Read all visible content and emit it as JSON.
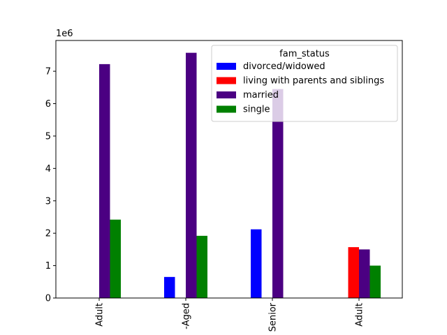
{
  "chart_data": {
    "type": "bar",
    "title": "",
    "xlabel": "",
    "ylabel": "",
    "y_offset_label": "1e6",
    "ylim": [
      0,
      7.95
    ],
    "y_ticks": [
      0,
      1,
      2,
      3,
      4,
      5,
      6,
      7
    ],
    "grid": false,
    "categories": [
      "Adult",
      "-Aged",
      "Senior",
      "Adult"
    ],
    "legend": {
      "title": "fam_status",
      "placement": "top-right"
    },
    "series": [
      {
        "name": "divorced/widowed",
        "color": "#0000ff",
        "values": [
          0,
          0.65,
          2.12,
          0
        ]
      },
      {
        "name": "living with parents and siblings",
        "color": "#ff0000",
        "values": [
          0,
          0,
          0,
          1.57
        ]
      },
      {
        "name": "married",
        "color": "#4b0082",
        "values": [
          7.22,
          7.57,
          6.45,
          1.5
        ]
      },
      {
        "name": "single",
        "color": "#008000",
        "values": [
          2.42,
          1.92,
          0,
          1.0
        ]
      }
    ]
  }
}
